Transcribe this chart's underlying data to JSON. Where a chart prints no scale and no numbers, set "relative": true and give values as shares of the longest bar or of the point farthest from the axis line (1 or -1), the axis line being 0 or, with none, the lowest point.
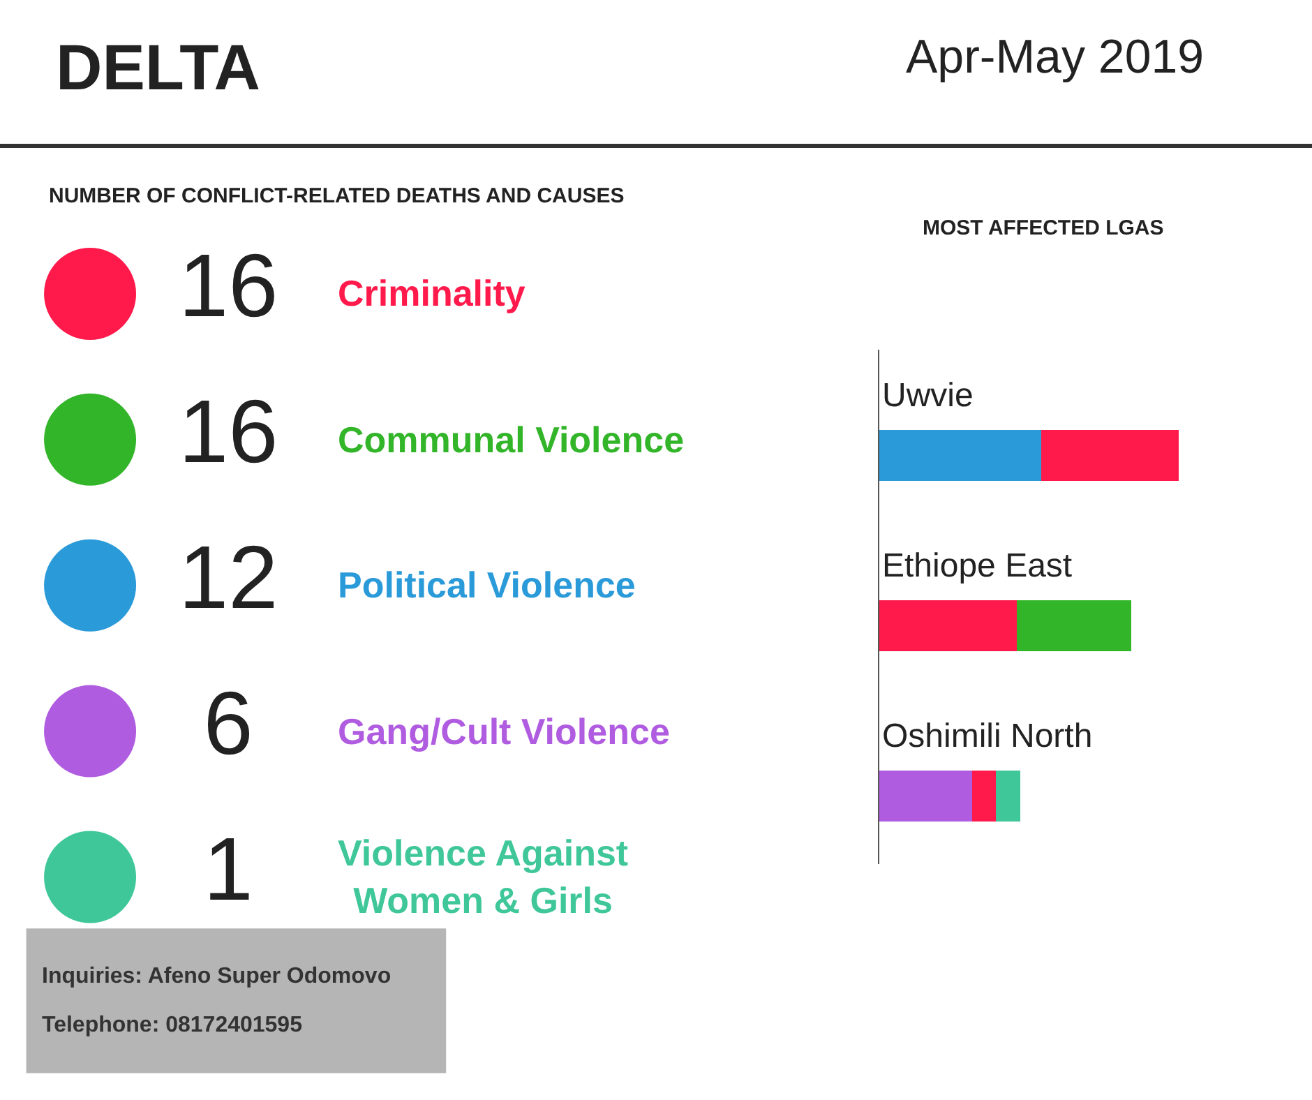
{
  "chart_data": [
    {
      "type": "other",
      "title": "NUMBER OF CONFLICT-RELATED DEATHS AND CAUSES",
      "categories": [
        "Criminality",
        "Communal Violence",
        "Political Violence",
        "Gang/Cult Violence",
        "Violence Against Women & Girls"
      ],
      "values": [
        16,
        16,
        12,
        6,
        1
      ],
      "colors": [
        "#ff1a4b",
        "#33b52a",
        "#2a9ad9",
        "#b05ce0",
        "#3fc79a"
      ],
      "data_labels": true,
      "annotations": [
        "DELTA",
        "Apr-May 2019",
        "Inquiries: Afeno Super Odomovo",
        "Telephone: 08172401595"
      ]
    },
    {
      "type": "bar",
      "orientation": "horizontal",
      "stacked": true,
      "relative": true,
      "title": "MOST AFFECTED LGAS",
      "categories": [
        "Uwvie",
        "Ethiope East",
        "Oshimili North"
      ],
      "series": [
        {
          "color": "#2a9ad9",
          "values": [
            0.54,
            null,
            null
          ]
        },
        {
          "color": "#b05ce0",
          "values": [
            null,
            null,
            0.31
          ]
        },
        {
          "color": "#ff1a4b",
          "values": [
            0.46,
            0.46,
            0.08
          ]
        },
        {
          "color": "#33b52a",
          "values": [
            null,
            0.38,
            null
          ]
        },
        {
          "color": "#3fc79a",
          "values": [
            null,
            null,
            0.08
          ]
        }
      ]
    }
  ]
}
